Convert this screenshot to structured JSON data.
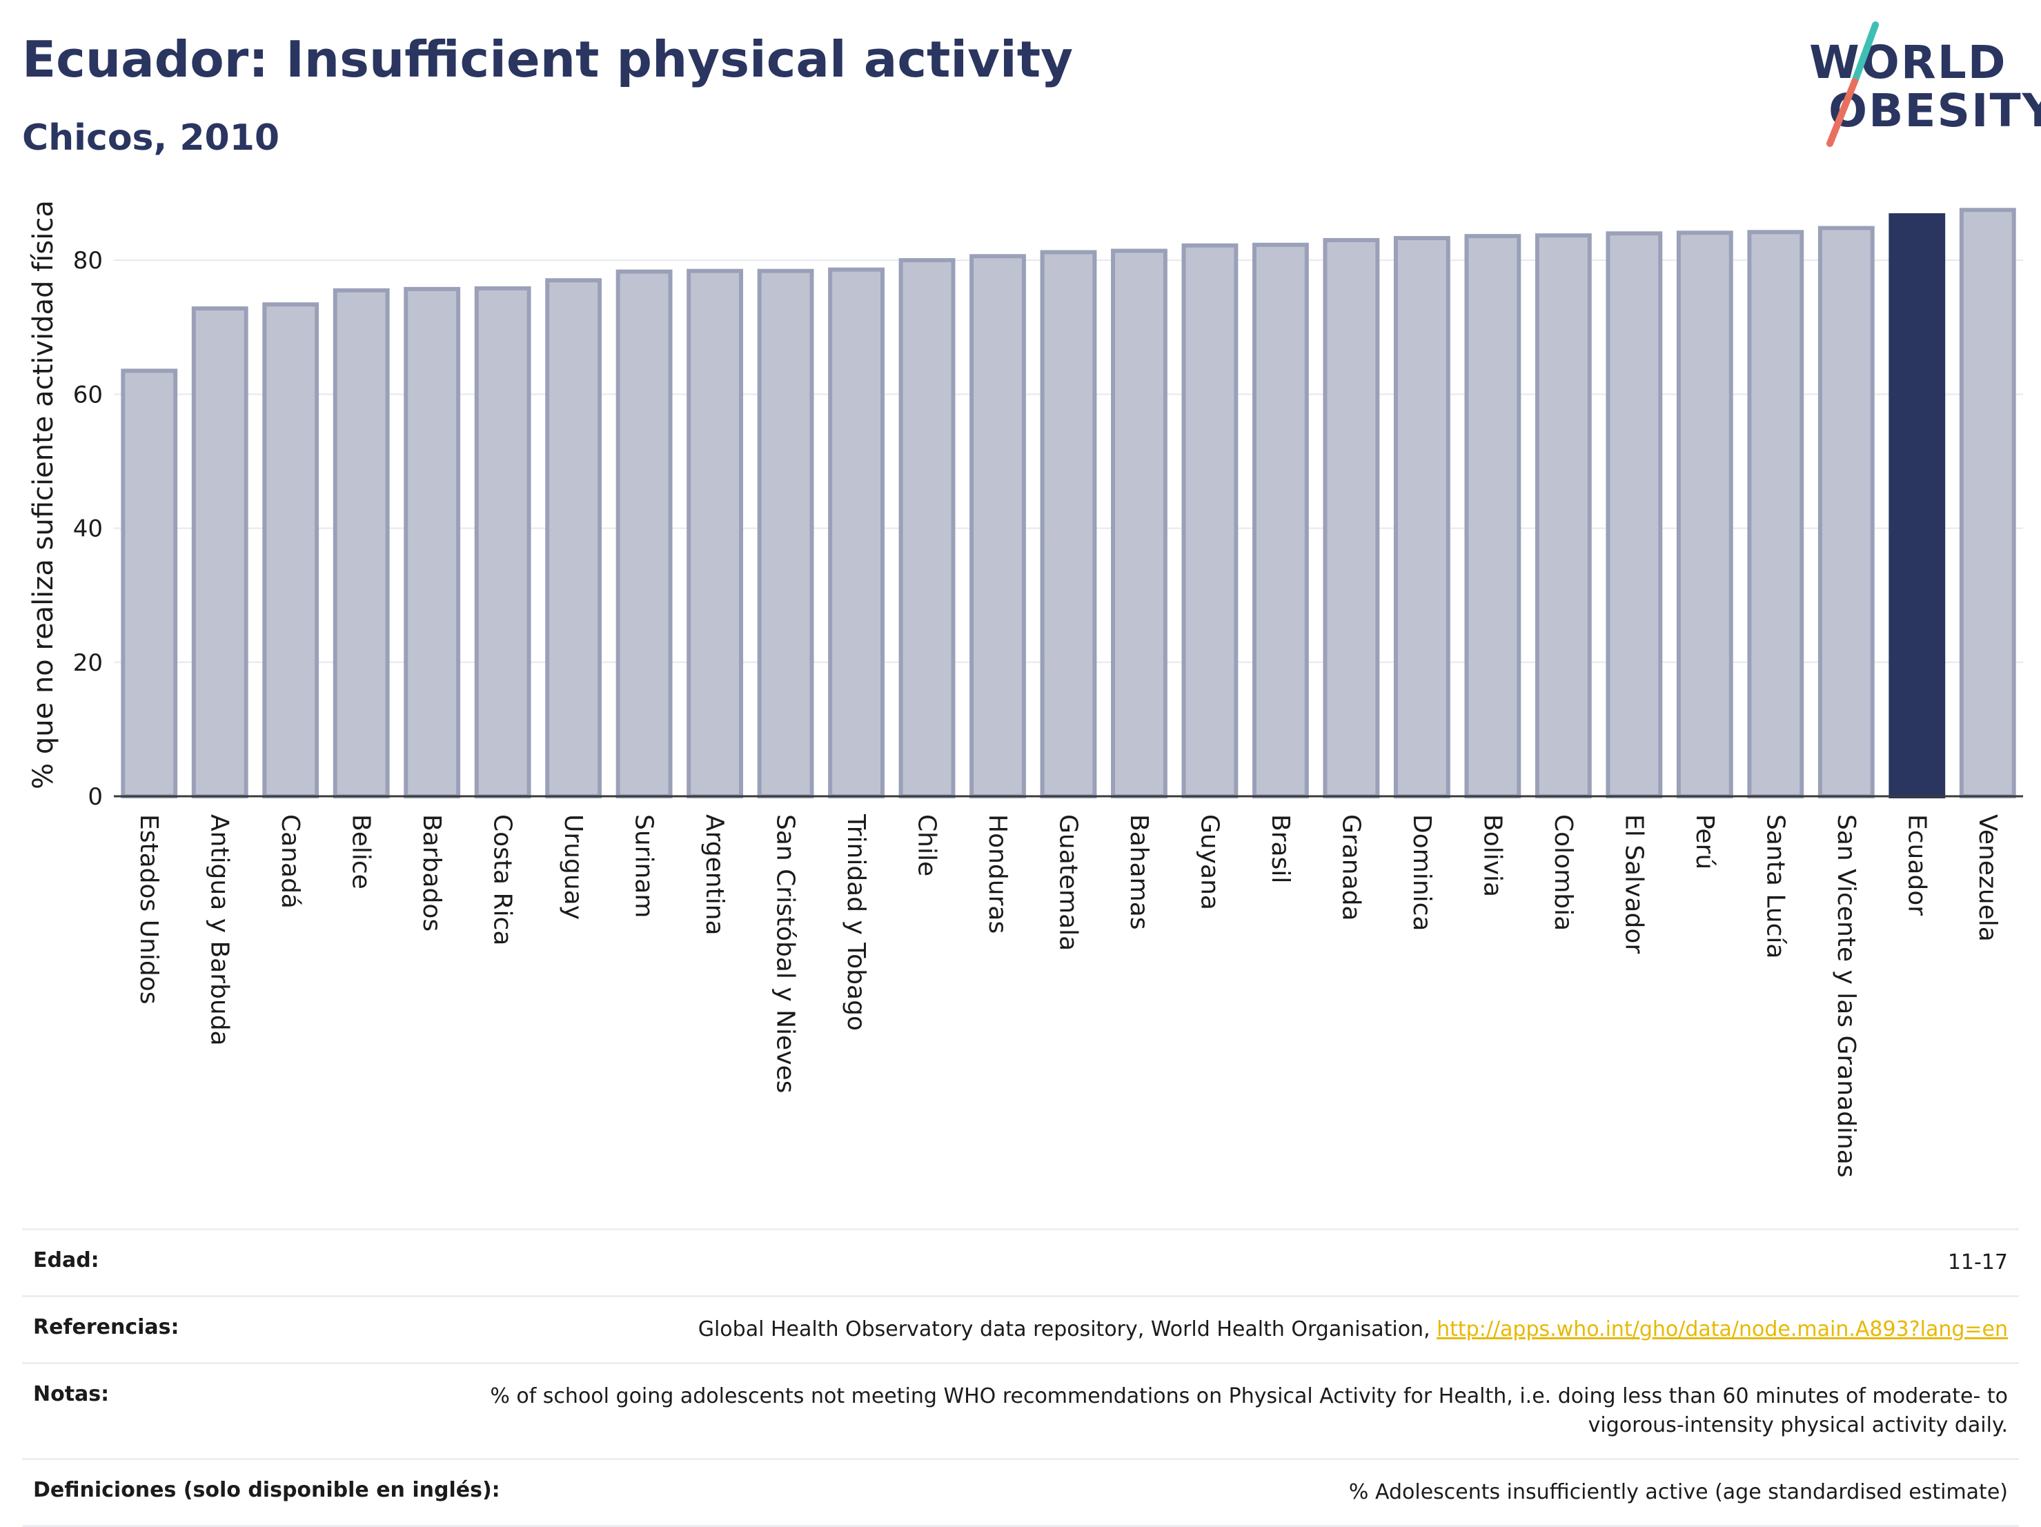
{
  "header": {
    "title": "Ecuador: Insufficient physical activity",
    "subtitle": "Chicos, 2010"
  },
  "logo": {
    "line1": "WORLD",
    "line2": "OBESITY",
    "colors": {
      "text": "#2a3560",
      "slash_top": "#3fbfb4",
      "slash_bottom": "#e8705f"
    }
  },
  "chart_data": {
    "type": "bar",
    "title": "",
    "xlabel": "",
    "ylabel": "% que no realiza suficiente actividad física",
    "ylim": [
      0,
      90
    ],
    "yticks": [
      0,
      20,
      40,
      60,
      80
    ],
    "grid": true,
    "highlight": "Ecuador",
    "colors": {
      "bar": "#bfc3d1",
      "bar_border": "#9aa0b8",
      "highlight": "#2a3560"
    },
    "categories": [
      "Estados Unidos",
      "Antigua y Barbuda",
      "Canadá",
      "Belice",
      "Barbados",
      "Costa Rica",
      "Uruguay",
      "Surinam",
      "Argentina",
      "San Cristóbal y Nieves",
      "Trinidad y Tobago",
      "Chile",
      "Honduras",
      "Guatemala",
      "Bahamas",
      "Guyana",
      "Brasil",
      "Granada",
      "Dominica",
      "Bolivia",
      "Colombia",
      "El Salvador",
      "Perú",
      "Santa Lucía",
      "San Vicente y las Granadinas",
      "Ecuador",
      "Venezuela"
    ],
    "values": [
      63.5,
      72.8,
      73.4,
      75.5,
      75.7,
      75.8,
      77.0,
      78.3,
      78.4,
      78.4,
      78.6,
      80.0,
      80.6,
      81.2,
      81.4,
      82.2,
      82.3,
      83.0,
      83.3,
      83.6,
      83.7,
      84.0,
      84.1,
      84.2,
      84.8,
      86.7,
      87.5
    ]
  },
  "meta": {
    "rows": [
      {
        "label": "Edad:",
        "value": "11-17"
      },
      {
        "label": "Referencias:",
        "value": "Global Health Observatory data repository, World Health Organisation, ",
        "link": "http://apps.who.int/gho/data/node.main.A893?lang=en"
      },
      {
        "label": "Notas:",
        "value": "% of school going adolescents not meeting WHO recommendations on Physical Activity for Health, i.e. doing less than 60 minutes of moderate- to vigorous-intensity physical activity daily."
      },
      {
        "label": "Definiciones (solo disponible en inglés):",
        "value": "% Adolescents insufficiently active (age standardised estimate)"
      }
    ]
  }
}
